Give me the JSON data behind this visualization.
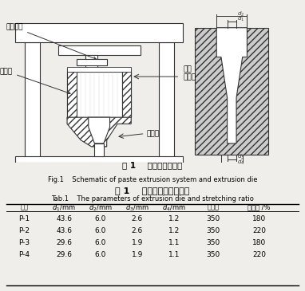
{
  "fig_caption_cn": "图 1    推压机和挤出头",
  "fig_caption_en": "Fig.1    Schematic of paste extrusion system and extrusion die",
  "table_title_cn": "表 1    挤出头参数和拉伸比",
  "table_title_en": "Tab.1    The parameters of extrusion die and stretching ratio",
  "col_headers_cn": [
    "膜丝",
    "压缩比",
    "拉伸比 /%"
  ],
  "col_headers_mixed": [
    "d1/mm",
    "d2/mm",
    "d3/mm",
    "d4/mm"
  ],
  "rows": [
    [
      "P-1",
      "43.6",
      "6.0",
      "2.6",
      "1.2",
      "350",
      "180"
    ],
    [
      "P-2",
      "43.6",
      "6.0",
      "2.6",
      "1.2",
      "350",
      "220"
    ],
    [
      "P-3",
      "29.6",
      "6.0",
      "1.9",
      "1.1",
      "350",
      "180"
    ],
    [
      "P-4",
      "29.6",
      "6.0",
      "1.9",
      "1.1",
      "350",
      "220"
    ]
  ],
  "bg_color": "#f0eeea",
  "label_tuiyahuosai": "推压活塞",
  "label_huanyuanqu": "还原区",
  "label_yali": "压力\n传感器",
  "label_kuozhanqu": "扩展区",
  "hatch_color": "#888888",
  "line_color": "#333333"
}
